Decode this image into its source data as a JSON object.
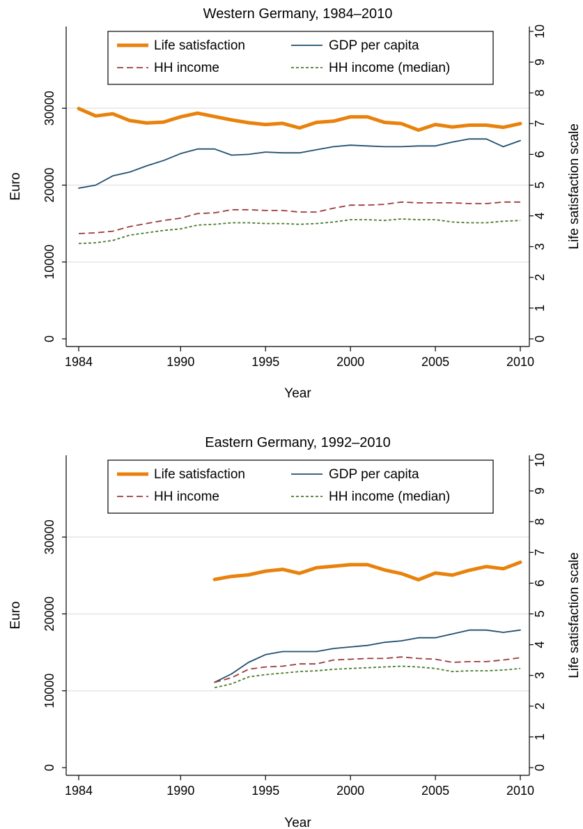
{
  "colors": {
    "life_satisfaction": "#e8820c",
    "gdp": "#1f4e6e",
    "hh_income": "#9b3a3a",
    "hh_median": "#4a7a2a",
    "grid": "#e6e6e6"
  },
  "chart_data": [
    {
      "type": "line",
      "title": "Western Germany, 1984–2010",
      "xlabel": "Year",
      "ylabel": "Euro",
      "y2label": "Life satisfaction scale",
      "xlim": [
        1984,
        2010
      ],
      "ylim": [
        0,
        40000
      ],
      "y2lim": [
        0,
        10
      ],
      "xticks": [
        "1984",
        "1990",
        "1995",
        "2000",
        "2005",
        "2010"
      ],
      "yticks": [
        "0",
        "10000",
        "20000",
        "30000"
      ],
      "y2ticks": [
        "0",
        "1",
        "2",
        "3",
        "4",
        "5",
        "6",
        "7",
        "8",
        "9",
        "10"
      ],
      "grid": true,
      "legend": "top",
      "x": [
        1984,
        1985,
        1986,
        1987,
        1988,
        1989,
        1990,
        1991,
        1992,
        1993,
        1994,
        1995,
        1996,
        1997,
        1998,
        1999,
        2000,
        2001,
        2002,
        2003,
        2004,
        2005,
        2006,
        2007,
        2008,
        2009,
        2010
      ],
      "series": [
        {
          "name": "Life satisfaction",
          "axis": "right",
          "style": "thick",
          "values": [
            7.49,
            7.25,
            7.32,
            7.1,
            7.02,
            7.05,
            7.22,
            7.34,
            7.23,
            7.12,
            7.03,
            6.97,
            7.01,
            6.86,
            7.04,
            7.08,
            7.22,
            7.22,
            7.04,
            7.0,
            6.79,
            6.97,
            6.89,
            6.95,
            6.95,
            6.88,
            7.0
          ]
        },
        {
          "name": "GDP per capita",
          "axis": "left",
          "style": "solid",
          "values": [
            19600,
            20000,
            21200,
            21700,
            22500,
            23200,
            24100,
            24700,
            24700,
            23900,
            24000,
            24300,
            24200,
            24200,
            24600,
            25000,
            25200,
            25100,
            25000,
            25000,
            25100,
            25100,
            25600,
            26000,
            26000,
            25000,
            25800
          ]
        },
        {
          "name": "HH income",
          "axis": "left",
          "style": "dash",
          "values": [
            13700,
            13800,
            14000,
            14600,
            15000,
            15400,
            15700,
            16300,
            16400,
            16800,
            16800,
            16700,
            16700,
            16500,
            16500,
            17000,
            17400,
            17400,
            17500,
            17800,
            17700,
            17700,
            17700,
            17600,
            17600,
            17800,
            17800
          ]
        },
        {
          "name": "HH income (median)",
          "axis": "left",
          "style": "shortdash",
          "values": [
            12400,
            12500,
            12800,
            13500,
            13800,
            14100,
            14300,
            14800,
            14900,
            15100,
            15100,
            15000,
            15000,
            14900,
            15000,
            15200,
            15500,
            15500,
            15400,
            15600,
            15500,
            15500,
            15200,
            15100,
            15100,
            15300,
            15400
          ]
        }
      ]
    },
    {
      "type": "line",
      "title": "Eastern Germany, 1992–2010",
      "xlabel": "Year",
      "ylabel": "Euro",
      "y2label": "Life satisfaction scale",
      "xlim": [
        1984,
        2010
      ],
      "ylim": [
        0,
        40000
      ],
      "y2lim": [
        0,
        10
      ],
      "xticks": [
        "1984",
        "1990",
        "1995",
        "2000",
        "2005",
        "2010"
      ],
      "yticks": [
        "0",
        "10000",
        "20000",
        "30000"
      ],
      "y2ticks": [
        "0",
        "1",
        "2",
        "3",
        "4",
        "5",
        "6",
        "7",
        "8",
        "9",
        "10"
      ],
      "grid": true,
      "legend": "top",
      "x": [
        1992,
        1993,
        1994,
        1995,
        1996,
        1997,
        1998,
        1999,
        2000,
        2001,
        2002,
        2003,
        2004,
        2005,
        2006,
        2007,
        2008,
        2009,
        2010
      ],
      "series": [
        {
          "name": "Life satisfaction",
          "axis": "right",
          "style": "thick",
          "values": [
            6.12,
            6.22,
            6.27,
            6.39,
            6.45,
            6.32,
            6.5,
            6.55,
            6.6,
            6.6,
            6.43,
            6.31,
            6.11,
            6.33,
            6.26,
            6.42,
            6.54,
            6.47,
            6.68
          ]
        },
        {
          "name": "GDP per capita",
          "axis": "left",
          "style": "solid",
          "values": [
            11100,
            12200,
            13700,
            14700,
            15100,
            15100,
            15100,
            15500,
            15700,
            15900,
            16300,
            16500,
            16900,
            16900,
            17400,
            17900,
            17900,
            17600,
            17900
          ]
        },
        {
          "name": "HH income",
          "axis": "left",
          "style": "dash",
          "values": [
            11100,
            11700,
            12800,
            13100,
            13200,
            13500,
            13500,
            14000,
            14100,
            14200,
            14200,
            14400,
            14200,
            14100,
            13700,
            13800,
            13800,
            14000,
            14300
          ]
        },
        {
          "name": "HH income (median)",
          "axis": "left",
          "style": "shortdash",
          "values": [
            10400,
            10900,
            11800,
            12100,
            12300,
            12500,
            12600,
            12800,
            12900,
            13000,
            13100,
            13200,
            13100,
            12900,
            12500,
            12600,
            12600,
            12700,
            12900
          ]
        }
      ]
    }
  ]
}
